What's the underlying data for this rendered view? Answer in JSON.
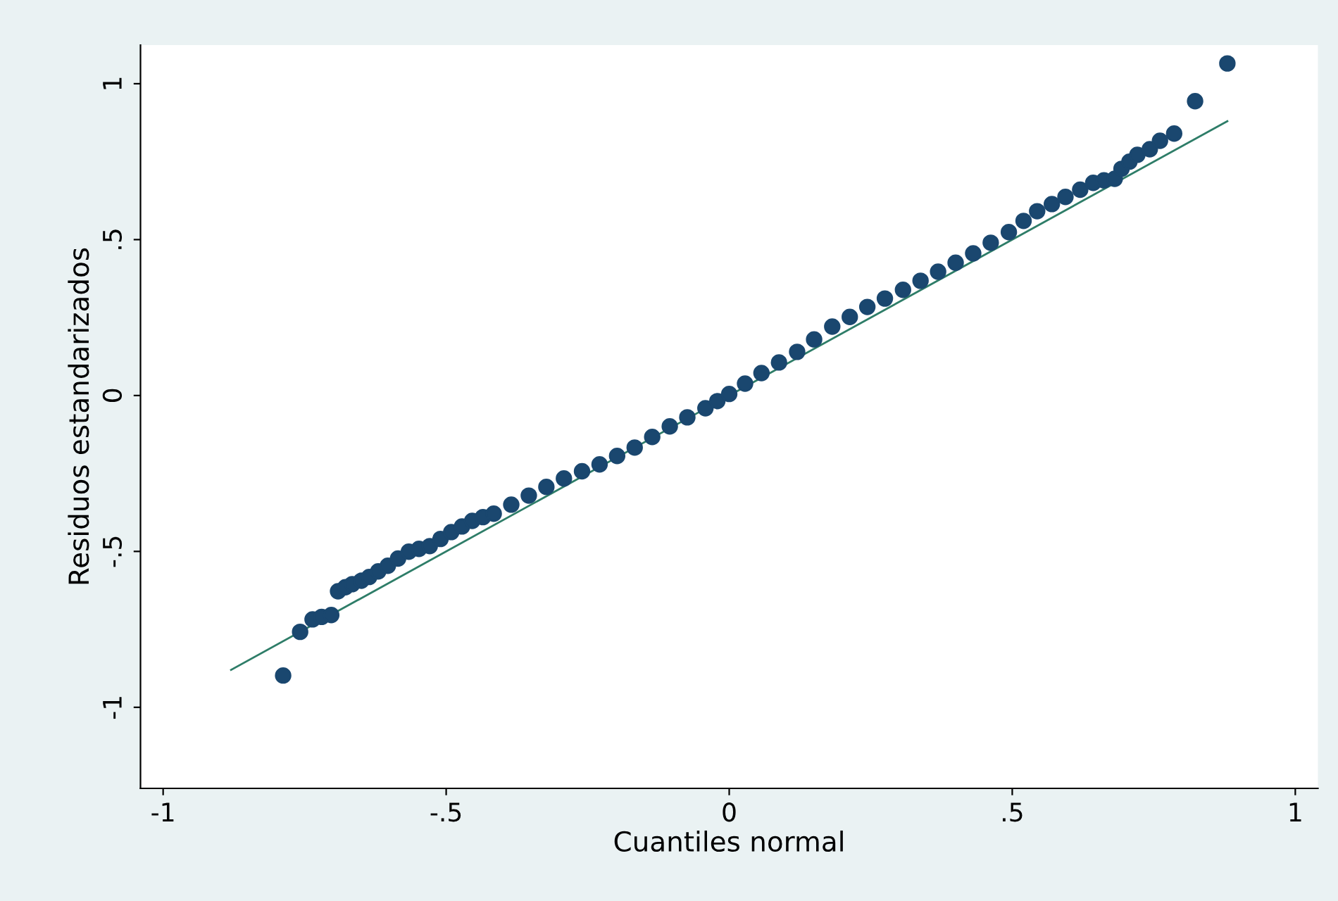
{
  "chart_data": {
    "type": "scatter",
    "xlabel": "Cuantiles normal",
    "ylabel": "Residuos estandarizados",
    "xlim": [
      -1.04,
      1.04
    ],
    "ylim": [
      -1.26,
      1.124
    ],
    "xticks": [
      {
        "value": -1,
        "label": "-1"
      },
      {
        "value": -0.5,
        "label": "-.5"
      },
      {
        "value": 0,
        "label": "0"
      },
      {
        "value": 0.5,
        "label": ".5"
      },
      {
        "value": 1,
        "label": "1"
      }
    ],
    "yticks": [
      {
        "value": -1,
        "label": "-1"
      },
      {
        "value": -0.5,
        "label": "-.5"
      },
      {
        "value": 0,
        "label": "0"
      },
      {
        "value": 0.5,
        "label": ".5"
      },
      {
        "value": 1,
        "label": "1"
      }
    ],
    "grid": false,
    "legend": false,
    "series": [
      {
        "marker": "circle",
        "color": "#1a476f",
        "x": [
          -0.788,
          -0.758,
          -0.736,
          -0.72,
          -0.703,
          -0.691,
          -0.678,
          -0.666,
          -0.65,
          -0.636,
          -0.62,
          -0.603,
          -0.585,
          -0.566,
          -0.548,
          -0.529,
          -0.51,
          -0.491,
          -0.472,
          -0.454,
          -0.435,
          -0.416,
          -0.385,
          -0.354,
          -0.323,
          -0.292,
          -0.26,
          -0.229,
          -0.198,
          -0.167,
          -0.136,
          -0.105,
          -0.074,
          -0.042,
          -0.021,
          0,
          0.028,
          0.057,
          0.088,
          0.12,
          0.15,
          0.182,
          0.213,
          0.244,
          0.275,
          0.307,
          0.338,
          0.369,
          0.4,
          0.431,
          0.462,
          0.494,
          0.52,
          0.544,
          0.57,
          0.594,
          0.62,
          0.643,
          0.662,
          0.681,
          0.693,
          0.707,
          0.721,
          0.743,
          0.761,
          0.786,
          0.823,
          0.88
        ],
        "values": [
          -0.898,
          -0.758,
          -0.718,
          -0.71,
          -0.704,
          -0.628,
          -0.615,
          -0.605,
          -0.594,
          -0.582,
          -0.564,
          -0.546,
          -0.523,
          -0.501,
          -0.492,
          -0.483,
          -0.46,
          -0.438,
          -0.42,
          -0.402,
          -0.39,
          -0.379,
          -0.35,
          -0.321,
          -0.293,
          -0.266,
          -0.243,
          -0.221,
          -0.194,
          -0.167,
          -0.133,
          -0.099,
          -0.07,
          -0.041,
          -0.018,
          0.005,
          0.038,
          0.072,
          0.106,
          0.14,
          0.18,
          0.221,
          0.252,
          0.284,
          0.311,
          0.339,
          0.368,
          0.397,
          0.426,
          0.456,
          0.49,
          0.524,
          0.56,
          0.591,
          0.614,
          0.637,
          0.66,
          0.682,
          0.69,
          0.695,
          0.727,
          0.75,
          0.772,
          0.79,
          0.817,
          0.84,
          0.944,
          1.065
        ]
      },
      {
        "type": "line",
        "color": "#2e7d68",
        "x": [
          -0.88,
          0.88
        ],
        "values": [
          -0.88,
          0.88
        ]
      }
    ]
  }
}
